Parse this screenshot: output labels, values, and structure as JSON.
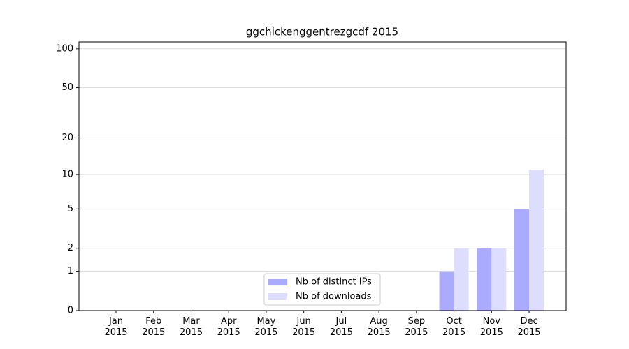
{
  "chart_data": {
    "type": "bar",
    "title": "ggchickenggentrezgcdf 2015",
    "categories": [
      "Jan\n2015",
      "Feb\n2015",
      "Mar\n2015",
      "Apr\n2015",
      "May\n2015",
      "Jun\n2015",
      "Jul\n2015",
      "Aug\n2015",
      "Sep\n2015",
      "Oct\n2015",
      "Nov\n2015",
      "Dec\n2015"
    ],
    "series": [
      {
        "name": "Nb of distinct IPs",
        "color": "#aaaaff",
        "values": [
          0,
          0,
          0,
          0,
          0,
          0,
          0,
          0,
          0,
          1,
          2,
          5
        ]
      },
      {
        "name": "Nb of downloads",
        "color": "#ddddff",
        "values": [
          0,
          0,
          0,
          0,
          0,
          0,
          0,
          0,
          0,
          2,
          2,
          11
        ]
      }
    ],
    "yscale": "log1p",
    "ylim": [
      0,
      113
    ],
    "yticks": [
      0,
      1,
      2,
      5,
      10,
      20,
      50,
      100
    ],
    "grid": true,
    "legend": "lower center"
  }
}
